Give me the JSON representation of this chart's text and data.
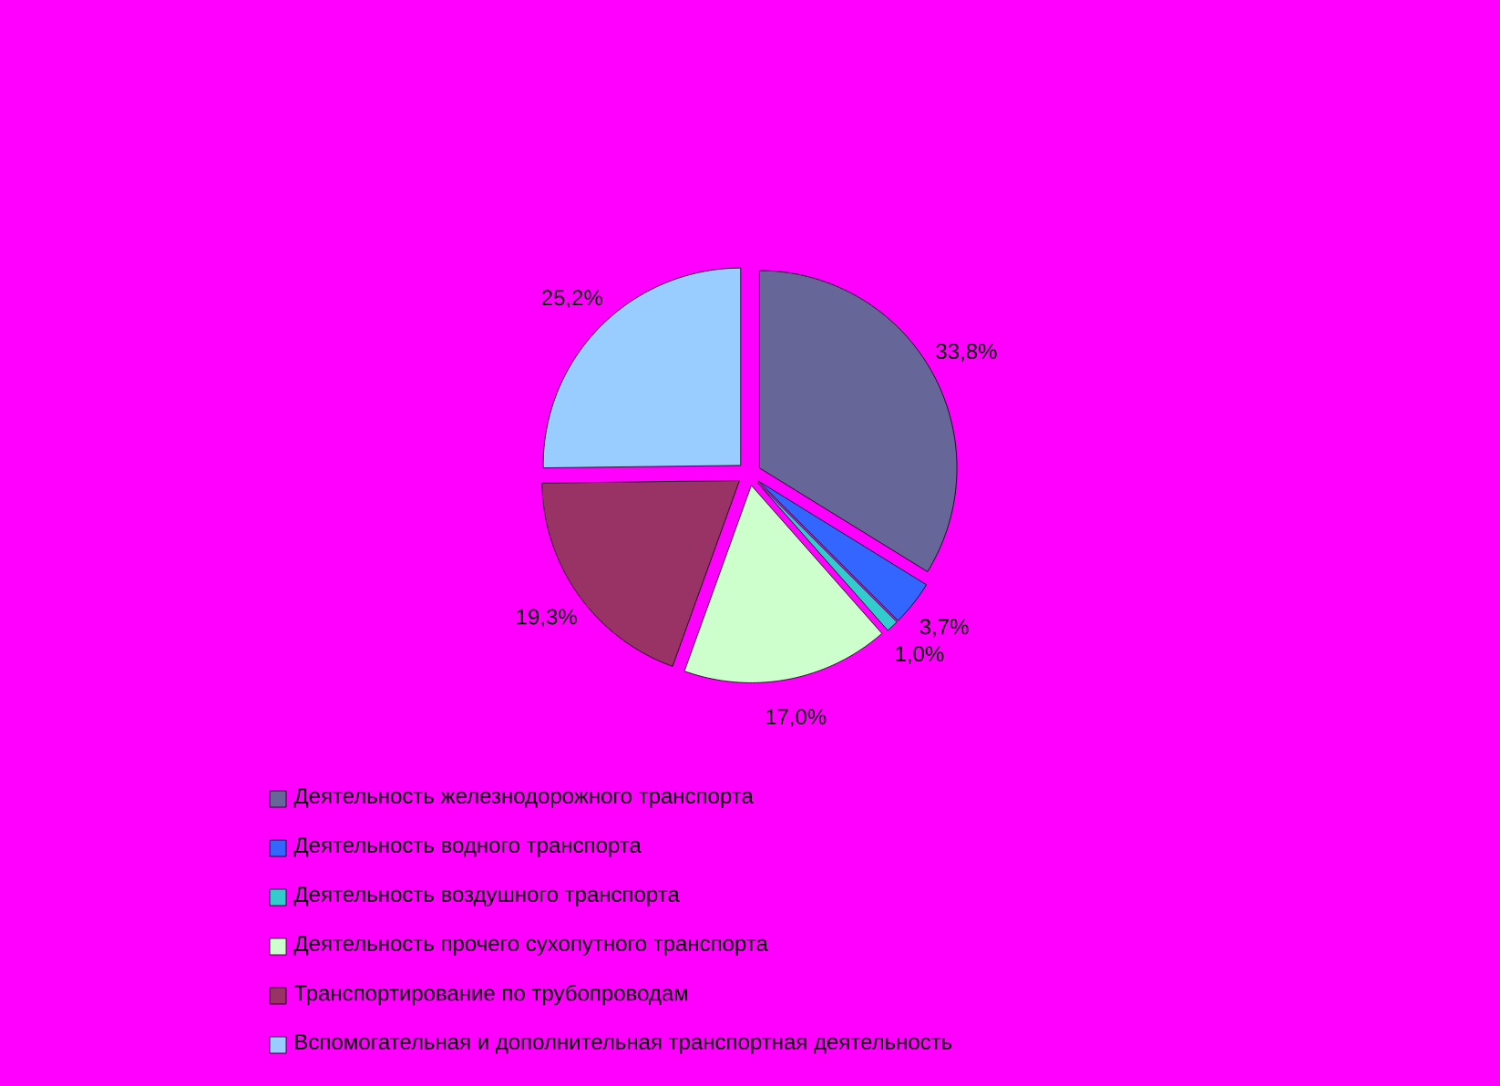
{
  "chart_data": {
    "type": "pie",
    "categories": [
      "Деятельность железнодорожного транспорта",
      "Деятельность водного транспорта",
      "Деятельность воздушного транспорта",
      "Деятельность прочего сухопутного транспорта",
      "Транспортирование по трубопроводам",
      "Вспомогательная и дополнительная транспортная деятельность"
    ],
    "values": [
      33.8,
      3.7,
      1.0,
      17.0,
      19.3,
      25.2
    ],
    "value_labels": [
      "33,8%",
      "3,7%",
      "1,0%",
      "17,0%",
      "19,3%",
      "25,2%"
    ],
    "colors": [
      "#666699",
      "#3366ff",
      "#33cccc",
      "#ccffcc",
      "#993366",
      "#99ccff"
    ],
    "legend": "bottom"
  }
}
